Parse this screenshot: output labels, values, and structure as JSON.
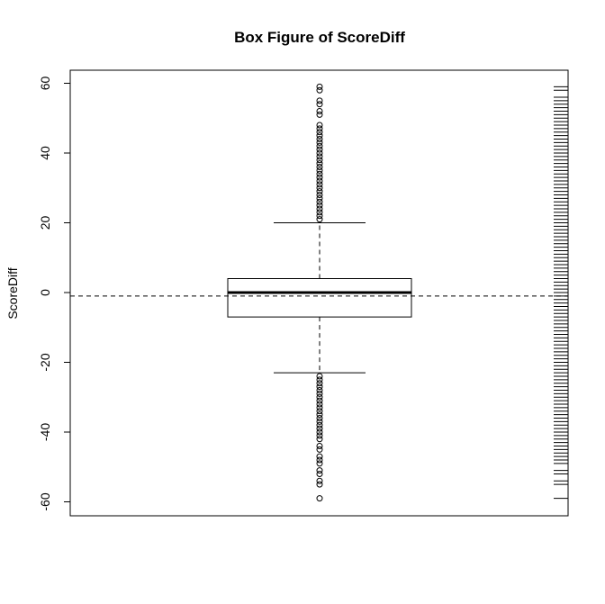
{
  "chart_data": {
    "type": "boxplot",
    "title": "Box Figure of ScoreDiff",
    "xlabel": "",
    "ylabel": "ScoreDiff",
    "ylim": [
      -63,
      64
    ],
    "yticks": [
      60,
      40,
      20,
      0,
      -20,
      -40,
      -60
    ],
    "ytick_labels": [
      "60",
      "40",
      "20",
      "0",
      "-20",
      "-40",
      "-60"
    ],
    "box": {
      "min_whisker": -23,
      "q1": -7,
      "median": 0,
      "q3": 4,
      "max_whisker": 20
    },
    "mean_reference_line": -1,
    "outliers_high": [
      21,
      22,
      23,
      24,
      25,
      26,
      27,
      28,
      29,
      30,
      31,
      32,
      33,
      34,
      35,
      36,
      37,
      38,
      39,
      40,
      41,
      42,
      43,
      44,
      45,
      46,
      47,
      48,
      51,
      52,
      54,
      55,
      58,
      59
    ],
    "outliers_low": [
      -24,
      -25,
      -26,
      -27,
      -28,
      -29,
      -30,
      -31,
      -32,
      -33,
      -34,
      -35,
      -36,
      -37,
      -38,
      -39,
      -40,
      -41,
      -42,
      -44,
      -45,
      -47,
      -48,
      -49,
      -51,
      -52,
      -54,
      -55,
      -59
    ],
    "rug_values": [
      59,
      58,
      56,
      55,
      54,
      53,
      52,
      51,
      50,
      49,
      48,
      47,
      46,
      45,
      44,
      43,
      42,
      41,
      40,
      39,
      38,
      37,
      36,
      35,
      34,
      33,
      32,
      31,
      30,
      29,
      28,
      27,
      26,
      25,
      24,
      23,
      22,
      21,
      20,
      19,
      18,
      17,
      16,
      15,
      14,
      13,
      12,
      11,
      10,
      9,
      8,
      7,
      6,
      5,
      4,
      3,
      2,
      1,
      0,
      -1,
      -2,
      -3,
      -4,
      -5,
      -6,
      -7,
      -8,
      -9,
      -10,
      -11,
      -12,
      -13,
      -14,
      -15,
      -16,
      -17,
      -18,
      -19,
      -20,
      -21,
      -22,
      -23,
      -24,
      -25,
      -26,
      -27,
      -28,
      -29,
      -30,
      -31,
      -32,
      -33,
      -34,
      -35,
      -36,
      -37,
      -38,
      -39,
      -40,
      -41,
      -42,
      -43,
      -44,
      -45,
      -46,
      -47,
      -48,
      -49,
      -51,
      -52,
      -54,
      -55,
      -59
    ]
  }
}
